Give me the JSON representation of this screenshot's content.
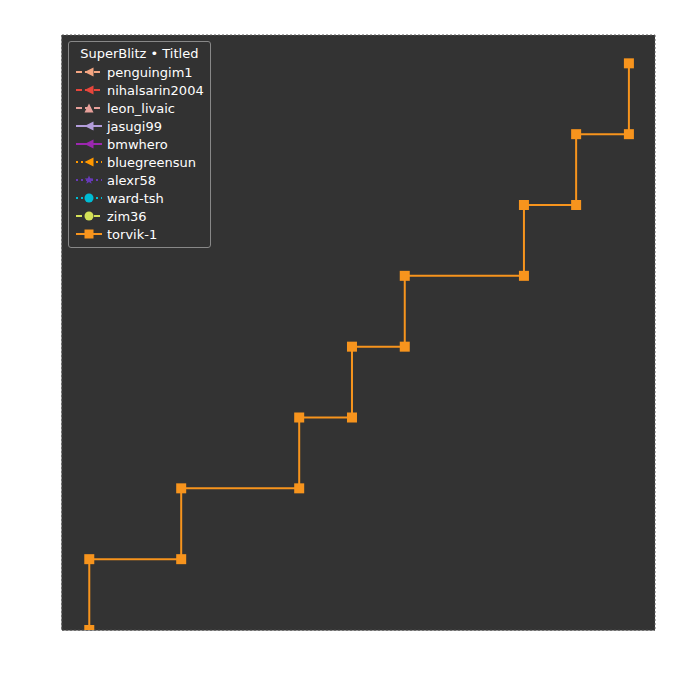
{
  "chart_data": {
    "type": "line",
    "title": "SuperBlitz • Titled",
    "legend": "upper left",
    "grid": true,
    "tick_labels": false,
    "x": [
      4.6,
      4.6,
      20.1,
      20.1,
      40.0,
      40.0,
      48.9,
      48.9,
      57.8,
      57.8,
      77.9,
      77.9,
      86.7,
      86.7,
      95.6,
      95.6
    ],
    "xlim": [
      0,
      100
    ],
    "xticks": [
      0,
      10,
      20,
      30,
      40,
      50,
      60,
      70,
      80,
      90,
      100
    ],
    "ylim": [
      0,
      8.4
    ],
    "yticks": [
      0,
      1,
      2,
      3,
      4,
      5,
      6,
      7,
      8
    ],
    "series": [
      {
        "name": "penguingim1",
        "color": "#f4a582",
        "marker": "triangle-left",
        "line_style": "dashed",
        "values": [
          null,
          null,
          null,
          null,
          null,
          null,
          null,
          null,
          null,
          null,
          null,
          null,
          null,
          null,
          null,
          null
        ]
      },
      {
        "name": "nihalsarin2004",
        "color": "#e8463c",
        "marker": "triangle-left",
        "line_style": "dashed",
        "values": [
          null,
          null,
          null,
          null,
          null,
          null,
          null,
          null,
          null,
          null,
          null,
          null,
          null,
          null,
          null,
          null
        ]
      },
      {
        "name": "leon_livaic",
        "color": "#e8a09a",
        "marker": "triangle-up",
        "line_style": "dashed",
        "values": [
          null,
          null,
          null,
          null,
          null,
          null,
          null,
          null,
          null,
          null,
          null,
          null,
          null,
          null,
          null,
          null
        ]
      },
      {
        "name": "jasugi99",
        "color": "#b39ddb",
        "marker": "triangle-left",
        "line_style": "solid",
        "values": [
          null,
          null,
          null,
          null,
          null,
          null,
          null,
          null,
          null,
          null,
          null,
          null,
          null,
          null,
          null,
          null
        ]
      },
      {
        "name": "bmwhero",
        "color": "#9c27b0",
        "marker": "triangle-left",
        "line_style": "solid",
        "values": [
          null,
          null,
          null,
          null,
          null,
          null,
          null,
          null,
          null,
          null,
          null,
          null,
          null,
          null,
          null,
          null
        ]
      },
      {
        "name": "bluegreensun",
        "color": "#ff9800",
        "marker": "triangle-left",
        "line_style": "dotted",
        "values": [
          null,
          null,
          null,
          null,
          null,
          null,
          null,
          null,
          null,
          null,
          null,
          null,
          null,
          null,
          null,
          null
        ]
      },
      {
        "name": "alexr58",
        "color": "#673ab7",
        "marker": "star",
        "line_style": "dotted",
        "values": [
          null,
          null,
          null,
          null,
          null,
          null,
          null,
          null,
          null,
          null,
          null,
          null,
          null,
          null,
          null,
          null
        ]
      },
      {
        "name": "ward-tsh",
        "color": "#00bcd4",
        "marker": "circle",
        "line_style": "dotted",
        "values": [
          null,
          null,
          null,
          null,
          null,
          null,
          null,
          null,
          null,
          null,
          null,
          null,
          null,
          null,
          null,
          null
        ]
      },
      {
        "name": "zim36",
        "color": "#d4e157",
        "marker": "circle",
        "line_style": "dashed",
        "values": [
          null,
          null,
          null,
          null,
          null,
          null,
          null,
          null,
          null,
          null,
          null,
          null,
          null,
          null,
          null,
          null
        ]
      },
      {
        "name": "torvik-1",
        "color": "#f7941d",
        "marker": "square",
        "line_style": "solid",
        "values": [
          0,
          1,
          1,
          2,
          2,
          3,
          3,
          4,
          4,
          5,
          5,
          6,
          6,
          7,
          7,
          8
        ]
      }
    ]
  }
}
